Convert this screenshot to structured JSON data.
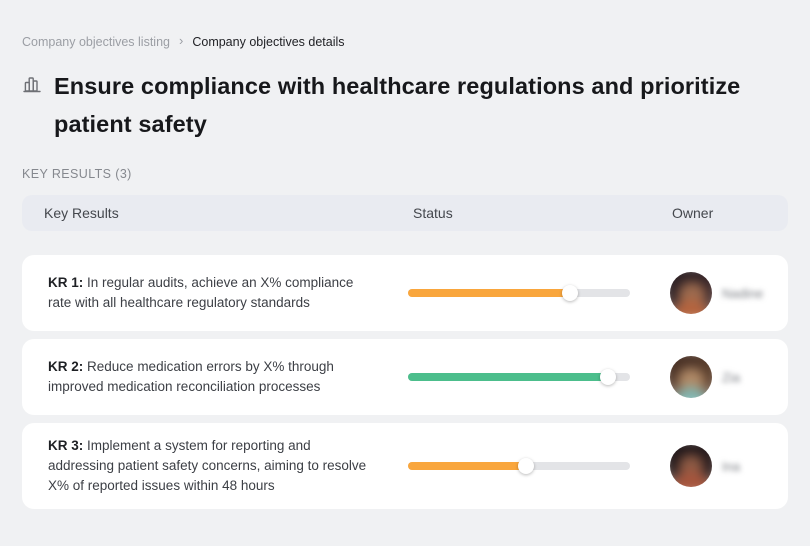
{
  "breadcrumb": {
    "parent": "Company objectives listing",
    "separator": "›",
    "current": "Company objectives details"
  },
  "page": {
    "title": "Ensure compliance with healthcare regulations and prioritize patient safety",
    "title_icon": "buildings-icon",
    "section_label": "KEY RESULTS (3)"
  },
  "table": {
    "headers": {
      "key_results": "Key Results",
      "status": "Status",
      "owner": "Owner"
    },
    "rows": [
      {
        "kr_label": "KR 1:",
        "description": "In regular audits, achieve an X% compliance rate with all healthcare regulatory standards",
        "progress_percent": 73,
        "progress_color": "#F9A63D",
        "owner": {
          "name": "Nadine",
          "avatar": "photo-blurred"
        }
      },
      {
        "kr_label": "KR 2:",
        "description": "Reduce medication errors by X% through improved medication reconciliation processes",
        "progress_percent": 90,
        "progress_color": "#4CBE8C",
        "owner": {
          "name": "Zia",
          "avatar": "photo-blurred"
        }
      },
      {
        "kr_label": "KR 3:",
        "description": "Implement a system for reporting and addressing patient safety concerns, aiming to resolve X% of reported issues within 48 hours",
        "progress_percent": 53,
        "progress_color": "#F9A63D",
        "owner": {
          "name": "Ina",
          "avatar": "photo-blurred"
        }
      }
    ]
  },
  "colors": {
    "page_background": "#F0F1F3",
    "header_row_background": "#E9EBF1",
    "card_background": "#FFFFFF",
    "progress_track": "#E3E4E7",
    "progress_orange": "#F9A63D",
    "progress_green": "#4CBE8C"
  }
}
